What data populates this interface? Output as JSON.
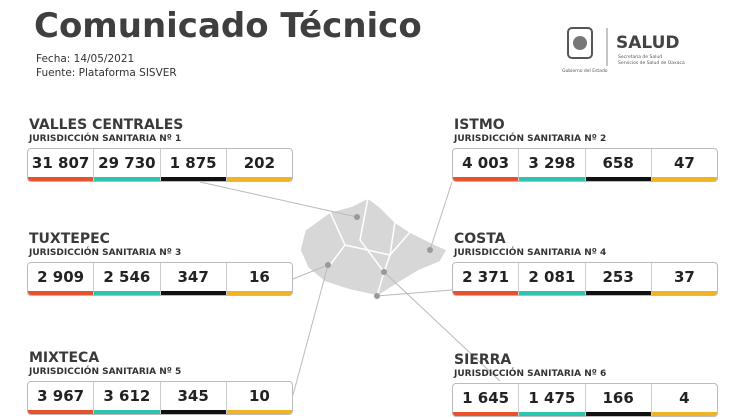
{
  "header": {
    "title": "Comunicado Técnico",
    "date": "Fecha: 14/05/2021",
    "source": "Fuente: Plataforma SISVER"
  },
  "logo": {
    "name": "SALUD",
    "line1": "Secretaría de Salud",
    "line2": "Servicios de Salud de Oaxaca",
    "government": "Gobierno del Estado"
  },
  "regions": [
    {
      "name": "VALLES CENTRALES",
      "jurisdiction": "JURISDICCIÓN SANITARIA Nº 1",
      "values": [
        "31 807",
        "29 730",
        "1 875",
        "202"
      ]
    },
    {
      "name": "ISTMO",
      "jurisdiction": "JURISDICCIÓN SANITARIA Nº 2",
      "values": [
        "4 003",
        "3 298",
        "658",
        "47"
      ]
    },
    {
      "name": "TUXTEPEC",
      "jurisdiction": "JURISDICCIÓN SANITARIA Nº 3",
      "values": [
        "2 909",
        "2 546",
        "347",
        "16"
      ]
    },
    {
      "name": "COSTA",
      "jurisdiction": "JURISDICCIÓN SANITARIA Nº 4",
      "values": [
        "2 371",
        "2 081",
        "253",
        "37"
      ]
    },
    {
      "name": "MIXTECA",
      "jurisdiction": "JURISDICCIÓN SANITARIA Nº 5",
      "values": [
        "3 967",
        "3 612",
        "345",
        "10"
      ]
    },
    {
      "name": "SIERRA",
      "jurisdiction": "JURISDICCIÓN SANITARIA Nº 6",
      "values": [
        "1 645",
        "1 475",
        "166",
        "4"
      ]
    }
  ]
}
